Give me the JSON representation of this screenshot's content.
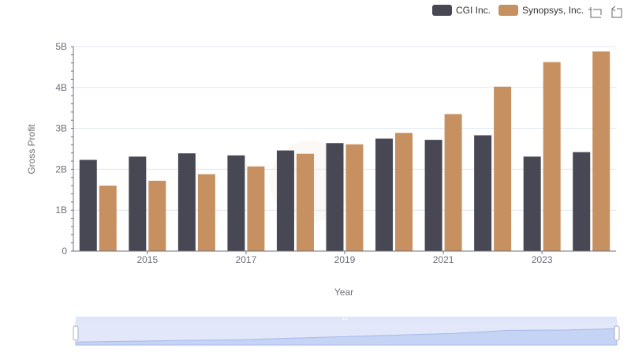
{
  "chart_data": {
    "type": "bar",
    "x": [
      2014,
      2015,
      2016,
      2017,
      2018,
      2019,
      2020,
      2021,
      2022,
      2023,
      2024
    ],
    "x_tick_labels": [
      "2015",
      "2017",
      "2019",
      "2021",
      "2023"
    ],
    "x_tick_values": [
      2015,
      2017,
      2019,
      2021,
      2023
    ],
    "y_tick_labels": [
      "0",
      "1B",
      "2B",
      "3B",
      "4B",
      "5B"
    ],
    "y_tick_values": [
      0,
      1000000000,
      2000000000,
      3000000000,
      4000000000,
      5000000000
    ],
    "ylim": [
      0,
      5000000000
    ],
    "xlabel": "Year",
    "ylabel": "Gross Profit",
    "grid": true,
    "legend_position": "top-right",
    "series": [
      {
        "name": "CGI Inc.",
        "color": "#484854",
        "values": [
          2230000000,
          2310000000,
          2390000000,
          2340000000,
          2460000000,
          2640000000,
          2750000000,
          2720000000,
          2830000000,
          2310000000,
          2420000000
        ]
      },
      {
        "name": "Synopsys, Inc.",
        "color": "#c69060",
        "values": [
          1600000000,
          1720000000,
          1880000000,
          2070000000,
          2380000000,
          2610000000,
          2890000000,
          3350000000,
          4020000000,
          4620000000,
          4880000000
        ]
      }
    ]
  },
  "toolbox": {
    "zoom_icon": "zoom-icon",
    "restore_icon": "restore-icon"
  },
  "datazoom": {
    "range_start": 0,
    "range_end": 100
  }
}
